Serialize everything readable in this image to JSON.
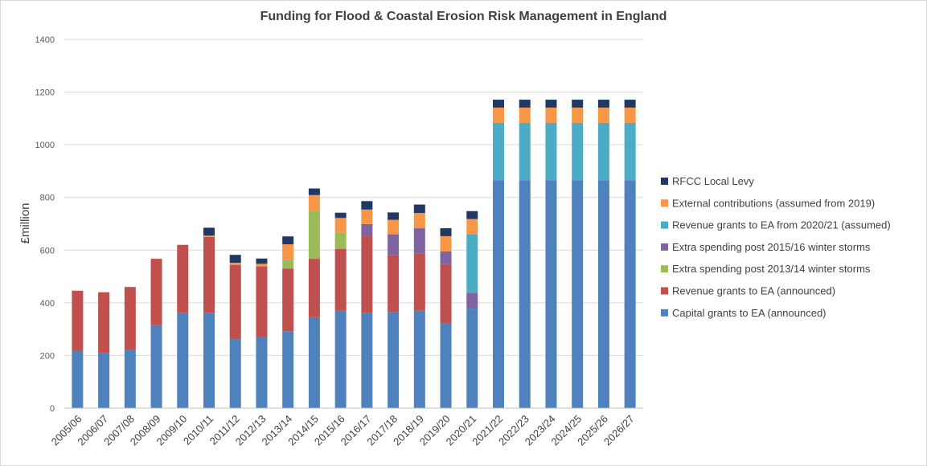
{
  "chart_data": {
    "type": "bar",
    "stacked": true,
    "title": "Funding for Flood & Coastal Erosion Risk Management in England",
    "xlabel": "",
    "ylabel": "£million",
    "ylim": [
      0,
      1400
    ],
    "yticks": [
      0,
      200,
      400,
      600,
      800,
      1000,
      1200,
      1400
    ],
    "grid": true,
    "legend_position": "right",
    "categories": [
      "2005/06",
      "2006/07",
      "2007/08",
      "2008/09",
      "2009/10",
      "2010/11",
      "2011/12",
      "2012/13",
      "2013/14",
      "2014/15",
      "2015/16",
      "2016/17",
      "2017/18",
      "2018/19",
      "2019/20",
      "2020/21",
      "2021/22",
      "2022/23",
      "2023/24",
      "2024/25",
      "2025/26",
      "2026/27"
    ],
    "series": [
      {
        "name": "Capital grants to EA (announced)",
        "color": "#4f81bd",
        "values": [
          218,
          208,
          220,
          315,
          362,
          362,
          262,
          270,
          292,
          345,
          370,
          362,
          365,
          370,
          322,
          378,
          865,
          865,
          865,
          865,
          865,
          865
        ]
      },
      {
        "name": "Revenue grants to EA (announced)",
        "color": "#c0504d",
        "values": [
          228,
          232,
          240,
          252,
          258,
          288,
          282,
          268,
          238,
          222,
          235,
          292,
          215,
          218,
          225,
          0,
          0,
          0,
          0,
          0,
          0,
          0
        ]
      },
      {
        "name": "Extra spending post 2013/14 winter storms",
        "color": "#9bbb59",
        "values": [
          0,
          0,
          0,
          0,
          0,
          0,
          0,
          0,
          32,
          182,
          62,
          0,
          0,
          0,
          0,
          0,
          0,
          0,
          0,
          0,
          0,
          0
        ]
      },
      {
        "name": "Extra spending post 2015/16 winter storms",
        "color": "#8064a2",
        "values": [
          0,
          0,
          0,
          0,
          0,
          0,
          0,
          0,
          0,
          0,
          0,
          45,
          80,
          95,
          48,
          60,
          0,
          0,
          0,
          0,
          0,
          0
        ]
      },
      {
        "name": "Revenue grants to EA from 2020/21 (assumed)",
        "color": "#4bacc6",
        "values": [
          0,
          0,
          0,
          0,
          0,
          0,
          0,
          0,
          0,
          0,
          0,
          0,
          0,
          0,
          0,
          222,
          218,
          218,
          218,
          218,
          218,
          218
        ]
      },
      {
        "name": "External contributions (assumed from 2019)",
        "color": "#f79646",
        "values": [
          0,
          0,
          0,
          0,
          0,
          5,
          8,
          10,
          60,
          60,
          55,
          55,
          55,
          58,
          58,
          58,
          58,
          58,
          58,
          58,
          58,
          58
        ]
      },
      {
        "name": "RFCC Local Levy",
        "color": "#1f3864",
        "values": [
          0,
          0,
          0,
          0,
          0,
          30,
          30,
          20,
          30,
          25,
          20,
          32,
          28,
          32,
          30,
          30,
          30,
          30,
          30,
          30,
          30,
          30
        ]
      }
    ]
  }
}
